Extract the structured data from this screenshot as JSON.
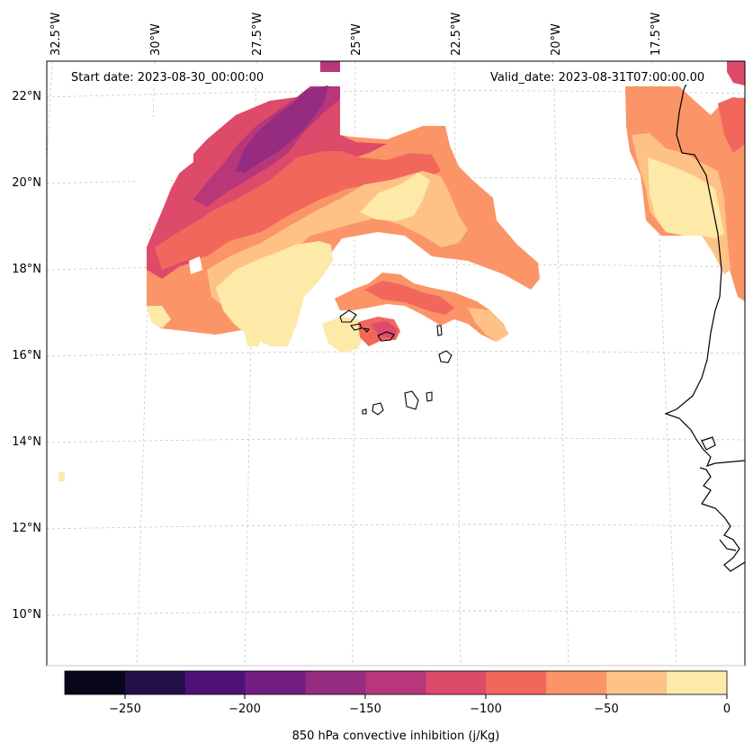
{
  "map": {
    "start_date": "Start date: 2023-08-30_00:00:00",
    "valid_date": "Valid_date: 2023-08-31T07:00:00.00",
    "lon_labels": [
      "32.5°W",
      "30°W",
      "27.5°W",
      "25°W",
      "22.5°W",
      "20°W",
      "17.5°W"
    ],
    "lat_labels": [
      "22°N",
      "20°N",
      "18°N",
      "16°N",
      "14°N",
      "12°N",
      "10°N"
    ]
  },
  "colorbar": {
    "label": "850 hPa convective inhibition (j/Kg)",
    "ticks": [
      "−250",
      "−200",
      "−150",
      "−100",
      "−50",
      "0"
    ],
    "range": [
      -275,
      0
    ],
    "bins": [
      {
        "from": -275,
        "to": -250,
        "color": "#07061b"
      },
      {
        "from": -250,
        "to": -225,
        "color": "#221149"
      },
      {
        "from": -225,
        "to": -200,
        "color": "#4f1277"
      },
      {
        "from": -200,
        "to": -175,
        "color": "#721f81"
      },
      {
        "from": -175,
        "to": -150,
        "color": "#952c80"
      },
      {
        "from": -150,
        "to": -125,
        "color": "#b7377a"
      },
      {
        "from": -125,
        "to": -100,
        "color": "#dd4a6a"
      },
      {
        "from": -100,
        "to": -75,
        "color": "#f2675c"
      },
      {
        "from": -75,
        "to": -50,
        "color": "#fb9567"
      },
      {
        "from": -50,
        "to": -25,
        "color": "#fec287"
      },
      {
        "from": -25,
        "to": 0,
        "color": "#fde9a8"
      }
    ]
  }
}
